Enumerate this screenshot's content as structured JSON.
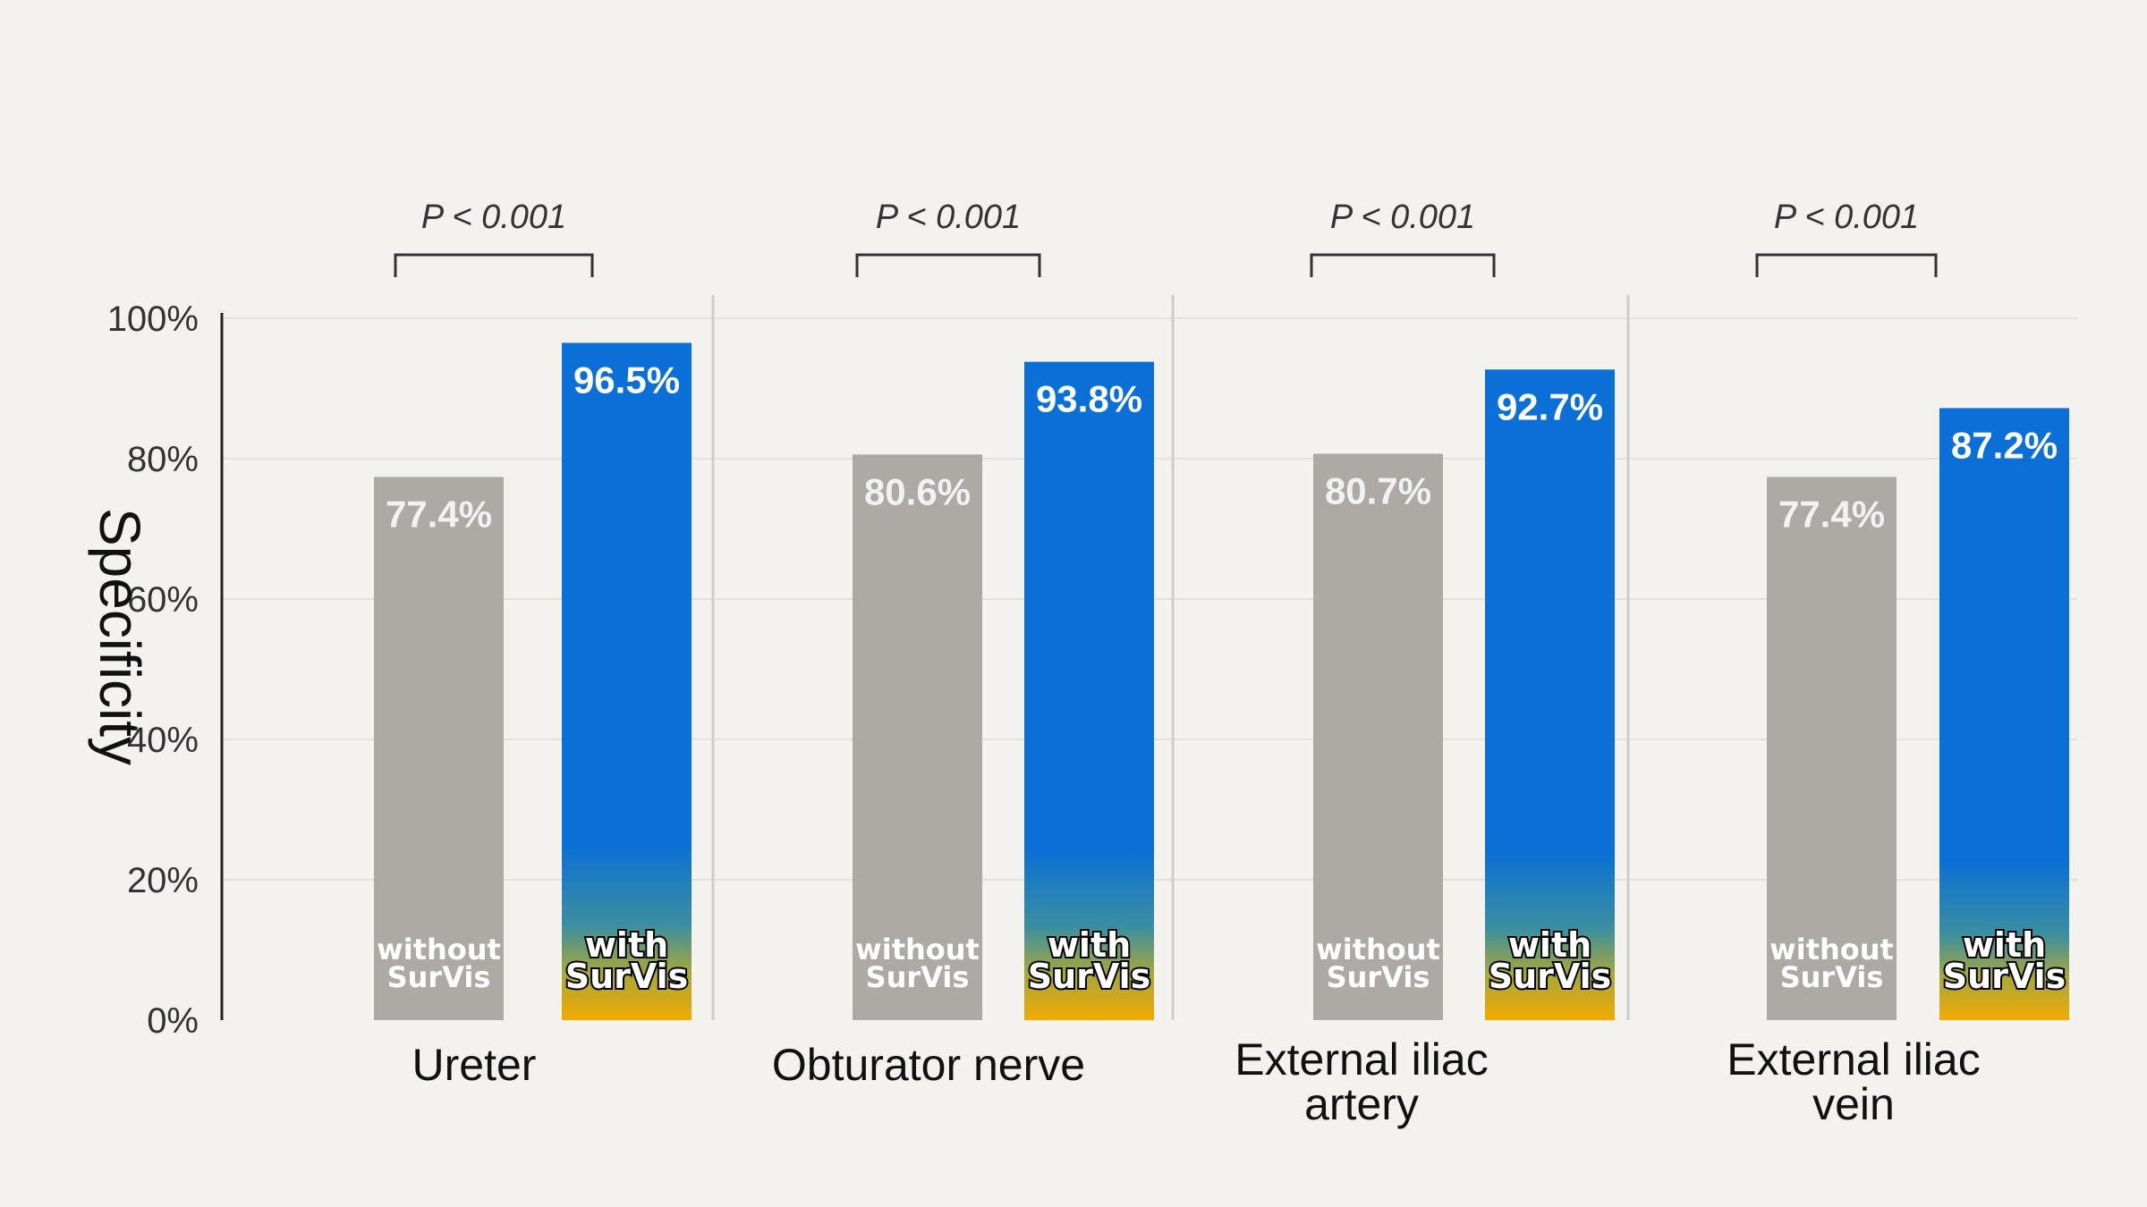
{
  "chart_data": {
    "type": "bar",
    "ylabel": "Specificity",
    "ylim": [
      0,
      100
    ],
    "yticks": [
      "0%",
      "20%",
      "40%",
      "60%",
      "80%",
      "100%"
    ],
    "ytick_values": [
      0,
      20,
      40,
      60,
      80,
      100
    ],
    "grid": true,
    "categories": [
      {
        "lines": [
          "Ureter"
        ]
      },
      {
        "lines": [
          "Obturator nerve"
        ]
      },
      {
        "lines": [
          "External iliac",
          "artery"
        ]
      },
      {
        "lines": [
          "External iliac",
          "vein"
        ]
      }
    ],
    "series": [
      {
        "name": "without SurVis",
        "name_lines": [
          "without",
          "SurVis"
        ],
        "values": [
          77.4,
          80.6,
          80.7,
          77.4
        ],
        "labels": [
          "77.4%",
          "80.6%",
          "80.7%",
          "77.4%"
        ],
        "color": "#adaaa6"
      },
      {
        "name": "with SurVis",
        "name_lines": [
          "with",
          "SurVis"
        ],
        "values": [
          96.5,
          93.8,
          92.7,
          87.2
        ],
        "labels": [
          "96.5%",
          "93.8%",
          "92.7%",
          "87.2%"
        ],
        "color": "#0a6fd6"
      }
    ],
    "annotations": [
      "P < 0.001",
      "P < 0.001",
      "P < 0.001",
      "P < 0.001"
    ],
    "colors": {
      "background": "#f3f2ee",
      "without": "#adaaa6",
      "with_top": "#0a6fd6",
      "with_bottom": "#f2aa00"
    }
  }
}
